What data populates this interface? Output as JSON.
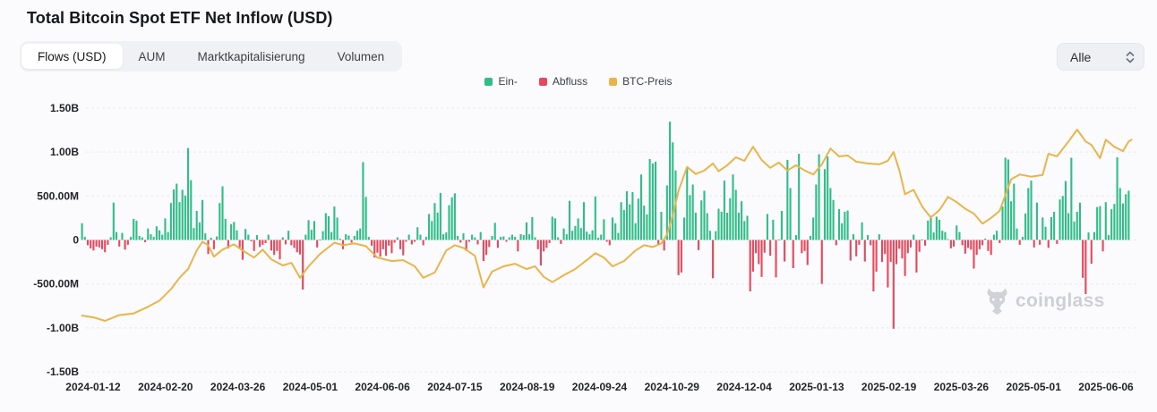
{
  "header": {
    "title": "Total Bitcoin Spot ETF Net Inflow (USD)"
  },
  "tabs": [
    {
      "label": "Flows (USD)",
      "active": true
    },
    {
      "label": "AUM",
      "active": false
    },
    {
      "label": "Marktkapitalisierung",
      "active": false
    },
    {
      "label": "Volumen",
      "active": false
    }
  ],
  "range_select": {
    "value": "Alle",
    "icon": "updown-chevron-icon"
  },
  "legend": [
    {
      "label": "Ein-",
      "color": "#2fbe87"
    },
    {
      "label": "Abfluss",
      "color": "#e8475c"
    },
    {
      "label": "BTC-Preis",
      "color": "#e9b54b"
    }
  ],
  "watermark": {
    "text": "coinglass",
    "icon": "coinglass-bull-icon",
    "color": "#c5c8ce"
  },
  "chart_data": {
    "type": "bar",
    "title": "Total Bitcoin Spot ETF Net Inflow (USD)",
    "xlabel": "",
    "ylabel": "",
    "grid": true,
    "legend_position": "top-center",
    "ylim_M": [
      -1500,
      1500
    ],
    "y_axis": {
      "ticks": [
        "1.50B",
        "1.00B",
        "500.00M",
        "0",
        "-500.00M",
        "-1.00B",
        "-1.50B"
      ],
      "values_M": [
        1500,
        1000,
        500,
        0,
        -500,
        -1000,
        -1500
      ]
    },
    "x_ticks": [
      "2024-01-12",
      "2024-02-20",
      "2024-03-26",
      "2024-05-01",
      "2024-06-06",
      "2024-07-15",
      "2024-08-19",
      "2024-09-24",
      "2024-10-29",
      "2024-12-04",
      "2025-01-13",
      "2025-02-19",
      "2025-03-26",
      "2025-05-01",
      "2025-06-06"
    ],
    "series_bar": {
      "name": "Ein-/Abfluss",
      "units": "USD millions per trading day (green = inflow, red = outflow)",
      "color_inflow": "#2fbe87",
      "color_outflow": "#e8475c",
      "months": [
        {
          "start": "2024-01-12",
          "values": [
            190,
            35,
            -60,
            -95,
            -120,
            -75,
            -85,
            -105,
            -140,
            -55,
            30,
            425,
            90
          ]
        },
        {
          "start": "2024-02-01",
          "values": [
            -75,
            80,
            -110,
            -55,
            35,
            240,
            220,
            45,
            30,
            -25,
            130,
            65,
            35,
            155,
            110,
            60,
            245,
            90,
            420,
            575
          ]
        },
        {
          "start": "2024-03-01",
          "values": [
            640,
            430,
            570,
            505,
            1045,
            680,
            135,
            330,
            200,
            455,
            75,
            -160,
            25,
            -105,
            40,
            420,
            610,
            240,
            -95,
            180
          ]
        },
        {
          "start": "2024-04-01",
          "values": [
            205,
            110,
            -85,
            -225,
            125,
            60,
            -15,
            -125,
            55,
            -80,
            -55,
            -35,
            60,
            -120,
            -170,
            -125,
            -220,
            30,
            -50,
            105,
            -60,
            -90
          ]
        },
        {
          "start": "2024-05-01",
          "values": [
            -140,
            -165,
            -565,
            60,
            225,
            115,
            215,
            -85,
            5,
            100,
            305,
            270,
            90,
            380,
            255,
            15,
            -105,
            65,
            50,
            -30,
            45,
            105
          ]
        },
        {
          "start": "2024-06-03",
          "values": [
            130,
            885,
            490,
            35,
            -65,
            -200,
            -145,
            -190,
            -105,
            -180,
            -65,
            -150,
            -30,
            30,
            -105,
            -175,
            -20,
            60,
            -50
          ]
        },
        {
          "start": "2024-07-01",
          "values": [
            -20,
            145,
            60,
            -60,
            35,
            295,
            215,
            420,
            310,
            535,
            65,
            85,
            395,
            485,
            530,
            45,
            -30,
            75,
            -125,
            -20,
            60,
            30
          ]
        },
        {
          "start": "2024-08-01",
          "values": [
            -50,
            90,
            -240,
            -170,
            -80,
            45,
            195,
            -90,
            35,
            40,
            -20,
            30,
            60,
            35,
            -130,
            65,
            55,
            200,
            65,
            260,
            30,
            -105
          ]
        },
        {
          "start": "2024-09-03",
          "values": [
            -290,
            -130,
            -90,
            -35,
            265,
            245,
            30,
            -45,
            130,
            65,
            445,
            105,
            160,
            245,
            135,
            430,
            95,
            65,
            110,
            495
          ]
        },
        {
          "start": "2024-10-01",
          "values": [
            25,
            60,
            235,
            -20,
            -60,
            255,
            190,
            80,
            430,
            340,
            555,
            405,
            545,
            190,
            470,
            745,
            390,
            290,
            920,
            870,
            890,
            -55,
            320
          ]
        },
        {
          "start": "2024-11-01",
          "values": [
            -120,
            620,
            1345,
            1110,
            790,
            -400,
            -370,
            255,
            815,
            510,
            630,
            310,
            -115,
            450,
            560,
            305,
            105,
            -435,
            100,
            355,
            320
          ]
        },
        {
          "start": "2024-12-02",
          "values": [
            675,
            310,
            475,
            745,
            570,
            310,
            440,
            215,
            275,
            -585,
            -360,
            -150,
            -275,
            -420,
            -145,
            295,
            -180,
            230,
            -425,
            5,
            330,
            -245
          ]
        },
        {
          "start": "2025-01-02",
          "values": [
            910,
            590,
            -320,
            55,
            980,
            -150,
            -125,
            -285,
            45,
            255,
            630,
            975,
            -500,
            805,
            950,
            590,
            455,
            -60,
            350,
            190,
            320
          ]
        },
        {
          "start": "2025-02-03",
          "values": [
            335,
            -235,
            65,
            -185,
            -55,
            200,
            -245,
            55,
            -60,
            -585,
            -360,
            65,
            -250,
            -160,
            -540,
            -250,
            -1010,
            -275,
            -100,
            -210
          ]
        },
        {
          "start": "2025-03-03",
          "values": [
            -410,
            -150,
            -85,
            60,
            -370,
            -135,
            5,
            -65,
            220,
            275,
            85,
            265,
            230,
            105,
            90,
            10,
            -95,
            -75,
            165,
            90,
            -60
          ]
        },
        {
          "start": "2025-04-01",
          "values": [
            -155,
            -90,
            -110,
            -325,
            -170,
            -105,
            -60,
            15,
            -125,
            -170,
            60,
            105,
            -35,
            380,
            935,
            915,
            440,
            640,
            130,
            -55,
            35,
            300
          ]
        },
        {
          "start": "2025-05-01",
          "values": [
            590,
            675,
            -85,
            425,
            -55,
            255,
            150,
            -90,
            260,
            320,
            -45,
            460,
            500,
            670,
            305,
            935,
            210,
            320,
            425,
            -430,
            -615,
            85
          ]
        },
        {
          "start": "2025-06-02",
          "values": [
            -270,
            90,
            375,
            385,
            -130,
            430,
            55,
            350,
            410,
            940,
            590,
            415,
            520,
            560
          ]
        }
      ]
    },
    "series_line": {
      "name": "BTC-Preis",
      "color": "#e9b54b",
      "units": "line position read in left-axis M units (right price axis not shown in screenshot)",
      "anchors": [
        [
          0,
          -860
        ],
        [
          4,
          -880
        ],
        [
          8,
          -920
        ],
        [
          13,
          -855
        ],
        [
          18,
          -835
        ],
        [
          23,
          -760
        ],
        [
          27,
          -690
        ],
        [
          31,
          -560
        ],
        [
          34,
          -430
        ],
        [
          37,
          -330
        ],
        [
          40,
          -120
        ],
        [
          42,
          -20
        ],
        [
          44,
          -60
        ],
        [
          46,
          -190
        ],
        [
          49,
          -110
        ],
        [
          53,
          -50
        ],
        [
          56,
          -120
        ],
        [
          60,
          -200
        ],
        [
          63,
          -110
        ],
        [
          66,
          -220
        ],
        [
          70,
          -290
        ],
        [
          73,
          -260
        ],
        [
          76,
          -430
        ],
        [
          79,
          -300
        ],
        [
          83,
          -160
        ],
        [
          88,
          -30
        ],
        [
          91,
          -60
        ],
        [
          95,
          -40
        ],
        [
          99,
          -70
        ],
        [
          103,
          -200
        ],
        [
          108,
          -240
        ],
        [
          112,
          -230
        ],
        [
          116,
          -300
        ],
        [
          119,
          -430
        ],
        [
          123,
          -370
        ],
        [
          127,
          -120
        ],
        [
          130,
          -60
        ],
        [
          133,
          -90
        ],
        [
          137,
          -180
        ],
        [
          140,
          -540
        ],
        [
          143,
          -360
        ],
        [
          147,
          -300
        ],
        [
          151,
          -270
        ],
        [
          155,
          -330
        ],
        [
          158,
          -300
        ],
        [
          161,
          -420
        ],
        [
          164,
          -480
        ],
        [
          168,
          -400
        ],
        [
          172,
          -330
        ],
        [
          176,
          -230
        ],
        [
          179,
          -150
        ],
        [
          182,
          -200
        ],
        [
          185,
          -300
        ],
        [
          189,
          -240
        ],
        [
          193,
          -120
        ],
        [
          196,
          -60
        ],
        [
          199,
          -80
        ],
        [
          202,
          -40
        ],
        [
          204,
          60
        ],
        [
          206,
          280
        ],
        [
          208,
          560
        ],
        [
          211,
          830
        ],
        [
          214,
          750
        ],
        [
          217,
          790
        ],
        [
          220,
          870
        ],
        [
          222,
          780
        ],
        [
          225,
          850
        ],
        [
          228,
          940
        ],
        [
          231,
          900
        ],
        [
          234,
          1060
        ],
        [
          237,
          910
        ],
        [
          240,
          820
        ],
        [
          243,
          880
        ],
        [
          246,
          790
        ],
        [
          249,
          850
        ],
        [
          252,
          790
        ],
        [
          255,
          745
        ],
        [
          258,
          860
        ],
        [
          261,
          1040
        ],
        [
          264,
          950
        ],
        [
          267,
          960
        ],
        [
          270,
          890
        ],
        [
          274,
          870
        ],
        [
          278,
          860
        ],
        [
          281,
          900
        ],
        [
          283,
          1000
        ],
        [
          285,
          795
        ],
        [
          287,
          520
        ],
        [
          290,
          570
        ],
        [
          293,
          380
        ],
        [
          296,
          255
        ],
        [
          299,
          340
        ],
        [
          302,
          490
        ],
        [
          305,
          430
        ],
        [
          308,
          355
        ],
        [
          311,
          300
        ],
        [
          314,
          185
        ],
        [
          317,
          250
        ],
        [
          320,
          330
        ],
        [
          324,
          690
        ],
        [
          327,
          745
        ],
        [
          331,
          720
        ],
        [
          335,
          740
        ],
        [
          337,
          980
        ],
        [
          340,
          950
        ],
        [
          344,
          1120
        ],
        [
          347,
          1255
        ],
        [
          350,
          1120
        ],
        [
          352,
          1080
        ],
        [
          355,
          930
        ],
        [
          357,
          1140
        ],
        [
          360,
          1060
        ],
        [
          363,
          1010
        ],
        [
          365,
          1120
        ],
        [
          366,
          1140
        ]
      ]
    }
  }
}
